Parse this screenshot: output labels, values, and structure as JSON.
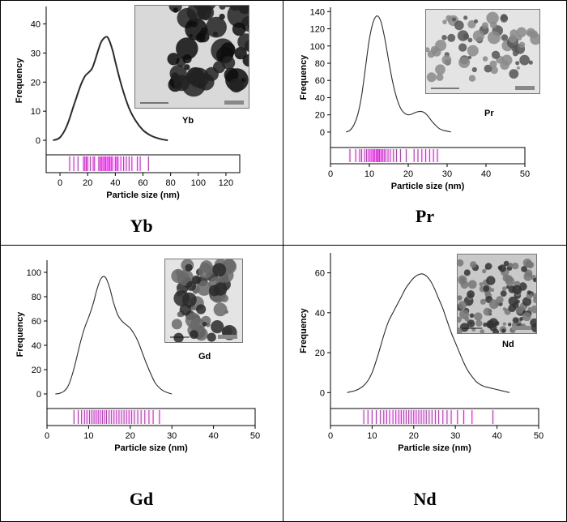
{
  "colors": {
    "curve": "#2b2b2b",
    "rug": "#e020e0",
    "axis": "#000000"
  },
  "panels": [
    {
      "caption": "Yb",
      "inset_label": "Yb",
      "inset_theme": "dark",
      "chart_data": {
        "type": "line",
        "xlabel": "Particle size (nm)",
        "ylabel": "Frequency",
        "xlim": [
          -10,
          130
        ],
        "xticks": [
          0,
          20,
          40,
          60,
          80,
          100,
          120
        ],
        "ylim": [
          -5,
          46
        ],
        "yticks": [
          0,
          10,
          20,
          30,
          40
        ],
        "x": [
          -5,
          0,
          5,
          10,
          15,
          18,
          20,
          23,
          25,
          28,
          30,
          33,
          35,
          38,
          40,
          45,
          50,
          55,
          60,
          65,
          70,
          75,
          78
        ],
        "y": [
          0,
          1,
          5,
          12,
          19,
          22,
          23,
          24.5,
          27,
          31.5,
          34,
          35.5,
          35,
          31,
          27,
          18,
          11,
          6.5,
          3.5,
          1.8,
          0.8,
          0.2,
          0
        ],
        "rug": [
          7,
          10,
          13,
          17,
          18,
          19,
          20,
          22,
          24,
          25,
          28,
          29,
          30,
          31,
          32,
          33,
          34,
          35,
          36,
          37,
          38,
          40,
          41,
          42,
          44,
          46,
          48,
          50,
          52,
          56,
          58,
          64
        ]
      }
    },
    {
      "caption": "Pr",
      "inset_label": "Pr",
      "inset_theme": "light",
      "chart_data": {
        "type": "line",
        "xlabel": "Particle size (nm)",
        "ylabel": "Frequency",
        "xlim": [
          0,
          50
        ],
        "xticks": [
          0,
          10,
          20,
          30,
          40,
          50
        ],
        "ylim": [
          -18,
          145
        ],
        "yticks": [
          0,
          20,
          40,
          60,
          80,
          100,
          120,
          140
        ],
        "x": [
          4,
          5,
          6,
          7,
          8,
          9,
          10,
          11,
          12,
          13,
          14,
          15,
          16,
          17,
          18,
          19,
          20,
          21,
          22,
          23,
          24,
          25,
          26,
          27,
          28,
          29,
          30,
          31
        ],
        "y": [
          0,
          2,
          8,
          20,
          42,
          75,
          108,
          128,
          135,
          128,
          108,
          82,
          58,
          40,
          28,
          22,
          20,
          21,
          23,
          24,
          23,
          19,
          13,
          8,
          4,
          2,
          1,
          0
        ],
        "rug": [
          5,
          6.5,
          7.5,
          8,
          8.8,
          9.3,
          9.8,
          10.2,
          10.6,
          11,
          11.3,
          11.7,
          12,
          12.3,
          12.6,
          13,
          13.4,
          13.8,
          14.2,
          14.8,
          15.4,
          16.2,
          17,
          18,
          19.5,
          21.5,
          22.5,
          23.5,
          24.5,
          25.5,
          26.5,
          27.5
        ]
      }
    },
    {
      "caption": "Gd",
      "inset_label": "Gd",
      "inset_theme": "mid",
      "chart_data": {
        "type": "line",
        "xlabel": "Particle size (nm)",
        "ylabel": "Frequency",
        "xlim": [
          0,
          50
        ],
        "xticks": [
          0,
          10,
          20,
          30,
          40,
          50
        ],
        "ylim": [
          -12,
          110
        ],
        "yticks": [
          0,
          20,
          40,
          60,
          80,
          100
        ],
        "x": [
          2,
          3,
          4,
          5,
          6,
          7,
          8,
          9,
          10,
          11,
          12,
          13,
          14,
          15,
          16,
          17,
          18,
          19,
          20,
          21,
          22,
          23,
          24,
          25,
          26,
          27,
          28,
          29,
          30
        ],
        "y": [
          0,
          0.5,
          2,
          6,
          15,
          28,
          42,
          54,
          63,
          73,
          86,
          95,
          96,
          88,
          75,
          65,
          60,
          57,
          54,
          49,
          42,
          33,
          24,
          16,
          9,
          5,
          2.5,
          1,
          0
        ],
        "rug": [
          6.5,
          7.5,
          8.3,
          9,
          9.6,
          10.2,
          10.8,
          11.3,
          11.8,
          12.3,
          12.8,
          13.3,
          13.8,
          14.3,
          14.9,
          15.5,
          16.1,
          16.7,
          17.3,
          17.9,
          18.5,
          19.1,
          19.7,
          20.3,
          21,
          21.8,
          22.6,
          23.5,
          24.5,
          25.5,
          27
        ]
      }
    },
    {
      "caption": "Nd",
      "inset_label": "Nd",
      "inset_theme": "speckle",
      "chart_data": {
        "type": "line",
        "xlabel": "Particle size (nm)",
        "ylabel": "Frequency",
        "xlim": [
          0,
          50
        ],
        "xticks": [
          0,
          10,
          20,
          30,
          40,
          50
        ],
        "ylim": [
          -8,
          70
        ],
        "yticks": [
          0,
          20,
          40,
          60
        ],
        "x": [
          4,
          5,
          6,
          7,
          8,
          9,
          10,
          11,
          12,
          13,
          14,
          15,
          16,
          17,
          18,
          19,
          20,
          21,
          22,
          23,
          24,
          25,
          26,
          27,
          28,
          29,
          30,
          31,
          32,
          33,
          34,
          35,
          36,
          37,
          38,
          39,
          40,
          41,
          42,
          43
        ],
        "y": [
          0,
          0.5,
          1,
          2,
          3.5,
          6,
          10,
          16,
          23,
          30,
          36,
          40,
          44,
          48,
          52,
          55,
          57.5,
          59,
          59.5,
          58.5,
          56,
          52,
          47,
          42,
          36,
          30,
          25,
          20,
          15,
          11,
          8,
          5.5,
          4,
          3,
          2.5,
          2,
          1.5,
          1,
          0.5,
          0
        ],
        "rug": [
          8,
          9,
          10,
          11,
          12,
          12.8,
          13.5,
          14.2,
          15,
          15.7,
          16.4,
          17,
          17.6,
          18.2,
          18.8,
          19.4,
          20,
          20.6,
          21.2,
          21.8,
          22.4,
          23,
          23.7,
          24.4,
          25.2,
          26,
          27,
          28,
          29,
          30.5,
          32,
          34,
          39
        ]
      }
    }
  ]
}
